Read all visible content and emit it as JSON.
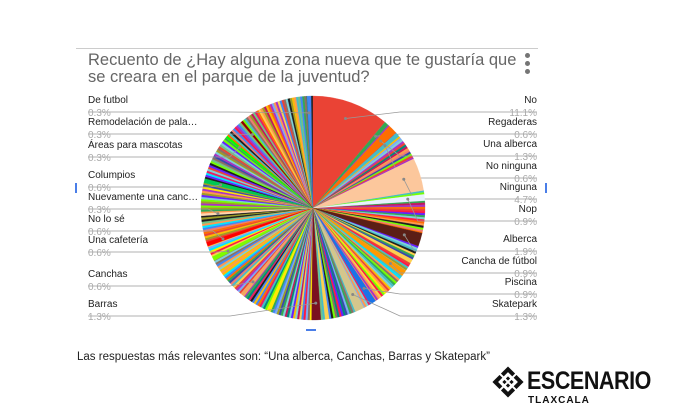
{
  "chart_data": {
    "type": "pie",
    "title": "Recuento de ¿Hay alguna zona nueva que te gustaría que se creara en el parque de la juventud?",
    "legend": "labels with leader lines",
    "slices": [
      {
        "label": "No",
        "value": 11.1,
        "display": "11.1%",
        "color": "#ea4335",
        "side": "right"
      },
      {
        "label": "Regaderas",
        "value": 0.6,
        "display": "0.6%",
        "color": "#34a853",
        "side": "right"
      },
      {
        "label": "Una alberca",
        "value": 1.3,
        "display": "1.3%",
        "color": "#ff6d01",
        "side": "right"
      },
      {
        "label": "No ninguna",
        "value": 0.6,
        "display": "0.6%",
        "color": "#46bdc6",
        "side": "right"
      },
      {
        "label": "Ninguna",
        "value": 4.7,
        "display": "4.7%",
        "color": "#fcc79c",
        "side": "right"
      },
      {
        "label": "Nop",
        "value": 0.9,
        "display": "0.9%",
        "color": "#e8f0fe",
        "side": "right"
      },
      {
        "label": "Alberca",
        "value": 1.9,
        "display": "1.9%",
        "color": "#5b1e16",
        "side": "right"
      },
      {
        "label": "Cancha de fútbol",
        "value": 0.9,
        "display": "0.9%",
        "color": "#ff9900",
        "side": "right"
      },
      {
        "label": "Piscina",
        "value": 0.9,
        "display": "0.9%",
        "color": "#1a73e8",
        "side": "right"
      },
      {
        "label": "Skatepark",
        "value": 1.3,
        "display": "1.3%",
        "color": "#d4c68c",
        "side": "right"
      },
      {
        "label": "Barras",
        "value": 1.3,
        "display": "1.3%",
        "color": "#7b1020",
        "side": "left"
      },
      {
        "label": "Canchas",
        "value": 0.6,
        "display": "0.6%",
        "color": "#f4a460",
        "side": "left"
      },
      {
        "label": "Una cafetería",
        "value": 0.6,
        "display": "0.6%",
        "color": "#7cfc00",
        "side": "left"
      },
      {
        "label": "No lo sé",
        "value": 0.6,
        "display": "0.6%",
        "color": "#ff0000",
        "side": "left"
      },
      {
        "label": "Nuevamente una canc…",
        "value": 0.3,
        "display": "0.3%",
        "color": "#ffd8b0",
        "side": "left"
      },
      {
        "label": "Columpios",
        "value": 0.6,
        "display": "0.6%",
        "color": "#00c853",
        "side": "left"
      },
      {
        "label": "Áreas para mascotas",
        "value": 0.3,
        "display": "0.3%",
        "color": "#00ff00",
        "side": "left"
      },
      {
        "label": "Remodelación de pala…",
        "value": 0.3,
        "display": "0.3%",
        "color": "#8b0000",
        "side": "left"
      },
      {
        "label": "De futbol",
        "value": 0.3,
        "display": "0.3%",
        "color": "#4285f4",
        "side": "left"
      }
    ]
  },
  "caption": "Las respuestas más relevantes son: “Una alberca, Canchas, Barras y Skatepark”",
  "brand": {
    "name": "ESCENARIO",
    "sub": "TLAXCALA"
  }
}
